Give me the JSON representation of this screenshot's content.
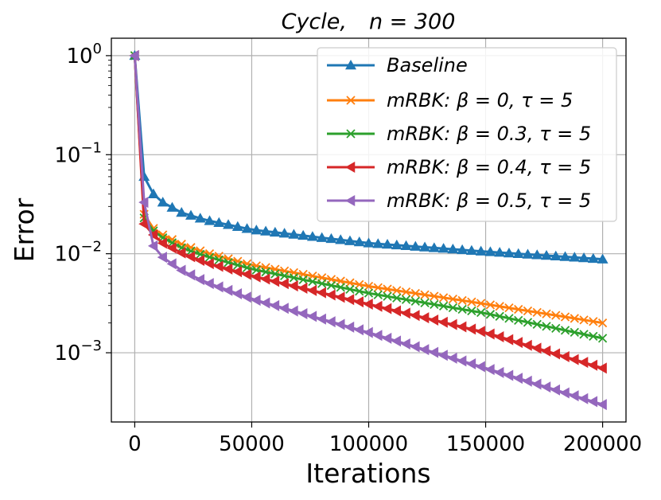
{
  "chart_data": {
    "type": "line",
    "title": "Cycle,    n = 300",
    "title_parts": {
      "name": "Cycle,",
      "param": "n = 300"
    },
    "xlabel": "Iterations",
    "ylabel": "Error",
    "xscale": "linear",
    "yscale": "log",
    "xlim": [
      -10000,
      210000
    ],
    "ylim": [
      0.0002,
      1.5
    ],
    "xticks": [
      0,
      50000,
      100000,
      150000,
      200000
    ],
    "xtick_labels": [
      "0",
      "50000",
      "100000",
      "150000",
      "200000"
    ],
    "yticks": [
      1,
      0.1,
      0.01,
      0.001
    ],
    "ytick_labels": [
      {
        "base": "10",
        "exp": "0"
      },
      {
        "base": "10",
        "exp": "−1"
      },
      {
        "base": "10",
        "exp": "−2"
      },
      {
        "base": "10",
        "exp": "−3"
      }
    ],
    "grid": true,
    "legend_position": "top-right",
    "series": [
      {
        "name": "Baseline",
        "label_plain": "Baseline",
        "color": "#1f77b4",
        "marker": "triangle-up",
        "anchors": [
          [
            0,
            1.0
          ],
          [
            4000,
            0.06
          ],
          [
            8000,
            0.04
          ],
          [
            12000,
            0.033
          ],
          [
            20000,
            0.026
          ],
          [
            30000,
            0.022
          ],
          [
            50000,
            0.0175
          ],
          [
            100000,
            0.0128
          ],
          [
            150000,
            0.0105
          ],
          [
            200000,
            0.0088
          ]
        ]
      },
      {
        "name": "mRBK: β = 0, τ = 5",
        "label_plain": "mRBK:β=0,τ=5",
        "color": "#ff7f0e",
        "marker": "x",
        "anchors": [
          [
            0,
            1.0
          ],
          [
            4000,
            0.025
          ],
          [
            8000,
            0.018
          ],
          [
            12000,
            0.0155
          ],
          [
            20000,
            0.0125
          ],
          [
            30000,
            0.0103
          ],
          [
            50000,
            0.0077
          ],
          [
            100000,
            0.0047
          ],
          [
            150000,
            0.0031
          ],
          [
            200000,
            0.002
          ]
        ]
      },
      {
        "name": "mRBK: β = 0.3, τ = 5",
        "label_plain": "mRBK:β=0.3,τ=5",
        "color": "#2ca02c",
        "marker": "x",
        "anchors": [
          [
            0,
            1.0
          ],
          [
            4000,
            0.023
          ],
          [
            8000,
            0.017
          ],
          [
            12000,
            0.0145
          ],
          [
            20000,
            0.0115
          ],
          [
            30000,
            0.0095
          ],
          [
            50000,
            0.007
          ],
          [
            100000,
            0.004
          ],
          [
            150000,
            0.0025
          ],
          [
            200000,
            0.0014
          ]
        ]
      },
      {
        "name": "mRBK: β = 0.4, τ = 5",
        "label_plain": "mRBK:β=0.4,τ=5",
        "color": "#d62728",
        "marker": "triangle-left",
        "anchors": [
          [
            0,
            1.0
          ],
          [
            4000,
            0.02
          ],
          [
            8000,
            0.0155
          ],
          [
            12000,
            0.0128
          ],
          [
            20000,
            0.0102
          ],
          [
            30000,
            0.0082
          ],
          [
            50000,
            0.006
          ],
          [
            100000,
            0.0031
          ],
          [
            150000,
            0.0016
          ],
          [
            200000,
            0.0007
          ]
        ]
      },
      {
        "name": "mRBK: β = 0.5, τ = 5",
        "label_plain": "mRBK:β=0.5,τ=5",
        "color": "#9467bd",
        "marker": "triangle-left",
        "anchors": [
          [
            0,
            1.0
          ],
          [
            4000,
            0.033
          ],
          [
            8000,
            0.012
          ],
          [
            12000,
            0.0092
          ],
          [
            20000,
            0.0068
          ],
          [
            30000,
            0.0052
          ],
          [
            50000,
            0.0035
          ],
          [
            100000,
            0.0016
          ],
          [
            150000,
            0.0007
          ],
          [
            200000,
            0.0003
          ]
        ]
      }
    ],
    "sample_every": 4000
  }
}
